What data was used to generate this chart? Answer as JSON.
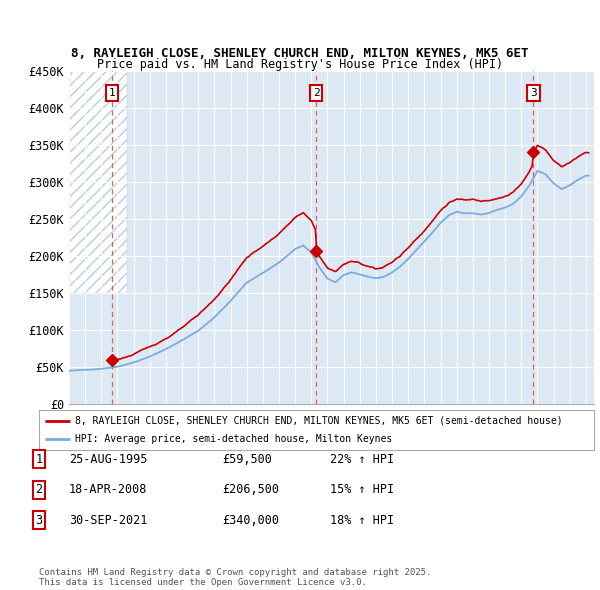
{
  "title1": "8, RAYLEIGH CLOSE, SHENLEY CHURCH END, MILTON KEYNES, MK5 6ET",
  "title2": "Price paid vs. HM Land Registry's House Price Index (HPI)",
  "background_color": "#ffffff",
  "plot_bg_color": "#dce9f5",
  "grid_color": "#ffffff",
  "sale_year_nums": [
    1995.646,
    2008.296,
    2021.748
  ],
  "sale_prices": [
    59500,
    206500,
    340000
  ],
  "sale_labels": [
    "1",
    "2",
    "3"
  ],
  "legend_line1": "8, RAYLEIGH CLOSE, SHENLEY CHURCH END, MILTON KEYNES, MK5 6ET (semi-detached house)",
  "legend_line2": "HPI: Average price, semi-detached house, Milton Keynes",
  "table_rows": [
    [
      "1",
      "25-AUG-1995",
      "£59,500",
      "22% ↑ HPI"
    ],
    [
      "2",
      "18-APR-2008",
      "£206,500",
      "15% ↑ HPI"
    ],
    [
      "3",
      "30-SEP-2021",
      "£340,000",
      "18% ↑ HPI"
    ]
  ],
  "footer": "Contains HM Land Registry data © Crown copyright and database right 2025.\nThis data is licensed under the Open Government Licence v3.0.",
  "price_line_color": "#cc0000",
  "hpi_line_color": "#7aaddc",
  "marker_color": "#cc0000",
  "dashed_line_color": "#e06060",
  "ylim": [
    0,
    450000
  ],
  "yticks": [
    0,
    50000,
    100000,
    150000,
    200000,
    250000,
    300000,
    350000,
    400000,
    450000
  ],
  "ytick_labels": [
    "£0",
    "£50K",
    "£100K",
    "£150K",
    "£200K",
    "£250K",
    "£300K",
    "£350K",
    "£400K",
    "£450K"
  ],
  "xlim_start": 1993.0,
  "xlim_end": 2025.5
}
